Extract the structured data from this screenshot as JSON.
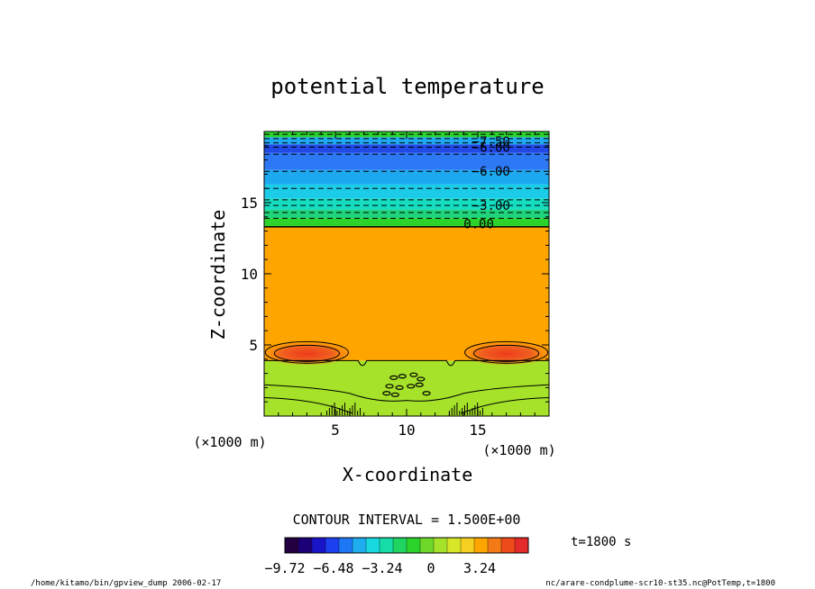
{
  "chart_data": {
    "type": "heatmap",
    "title": "potential temperature",
    "xlabel": "X-coordinate",
    "ylabel": "Z-coordinate",
    "x_unit": "(×1000 m)",
    "z_unit": "(×1000 m)",
    "xlim": [
      0,
      20
    ],
    "ylim": [
      0,
      20
    ],
    "x_ticks": [
      {
        "value": 5,
        "label": "5"
      },
      {
        "value": 10,
        "label": "10"
      },
      {
        "value": 15,
        "label": "15"
      }
    ],
    "y_ticks": [
      {
        "value": 5,
        "label": "5"
      },
      {
        "value": 10,
        "label": "10"
      },
      {
        "value": 15,
        "label": "15"
      }
    ],
    "contour_interval_text": "CONTOUR INTERVAL = 1.500E+00",
    "time_text": "t=1800 s",
    "colorbar": {
      "min": -9.72,
      "max": 6.48,
      "tick_labels": [
        {
          "value": -9.72,
          "label": "−9.72"
        },
        {
          "value": -6.48,
          "label": "−6.48"
        },
        {
          "value": -3.24,
          "label": "−3.24"
        },
        {
          "value": 0,
          "label": "0"
        },
        {
          "value": 3.24,
          "label": "3.24"
        }
      ]
    },
    "contour_labels": [
      {
        "label": "−7.50",
        "z": 19.3,
        "x": 14.6
      },
      {
        "label": "−6.00",
        "z": 18.9,
        "x": 14.6
      },
      {
        "label": "−6.00",
        "z": 17.2,
        "x": 14.6
      },
      {
        "label": "−3.00",
        "z": 14.8,
        "x": 14.6
      },
      {
        "label": "0.00",
        "z": 13.5,
        "x": 14.0
      }
    ],
    "bands": [
      {
        "z0": 0.0,
        "z1": 3.9,
        "value": 0.8,
        "color": "#a6e22a"
      },
      {
        "z0": 3.9,
        "z1": 13.3,
        "value": 2.4,
        "color": "#ffa500"
      },
      {
        "z0": 13.3,
        "z1": 13.9,
        "value": -0.8,
        "color": "#2bd32b"
      },
      {
        "z0": 13.9,
        "z1": 14.5,
        "value": -2.0,
        "color": "#1fd47a"
      },
      {
        "z0": 14.5,
        "z1": 15.3,
        "value": -3.0,
        "color": "#16dcc0"
      },
      {
        "z0": 15.3,
        "z1": 16.3,
        "value": -4.2,
        "color": "#1ccbe8"
      },
      {
        "z0": 16.3,
        "z1": 17.3,
        "value": -5.2,
        "color": "#1ea8f0"
      },
      {
        "z0": 17.3,
        "z1": 18.5,
        "value": -6.0,
        "color": "#2d78f5"
      },
      {
        "z0": 18.5,
        "z1": 19.1,
        "value": -7.0,
        "color": "#2049e6"
      },
      {
        "z0": 19.1,
        "z1": 19.6,
        "value": -6.0,
        "color": "#1ea8f0"
      },
      {
        "z0": 19.6,
        "z1": 20.0,
        "value": -1.5,
        "color": "#2bd32b"
      }
    ],
    "warm_cores": [
      {
        "x": 3.0,
        "z": 4.6,
        "value": 4.5
      },
      {
        "x": 17.0,
        "z": 4.6,
        "value": 4.5
      }
    ],
    "grid": false,
    "legend": "bottom"
  },
  "footer": {
    "left": "/home/kitamo/bin/gpview_dump  2006-02-17",
    "right": "nc/arare-condplume-scr10-st35.nc@PotTemp,t=1800"
  },
  "colors": {
    "background": "#ffffff",
    "frame": "#000000"
  }
}
